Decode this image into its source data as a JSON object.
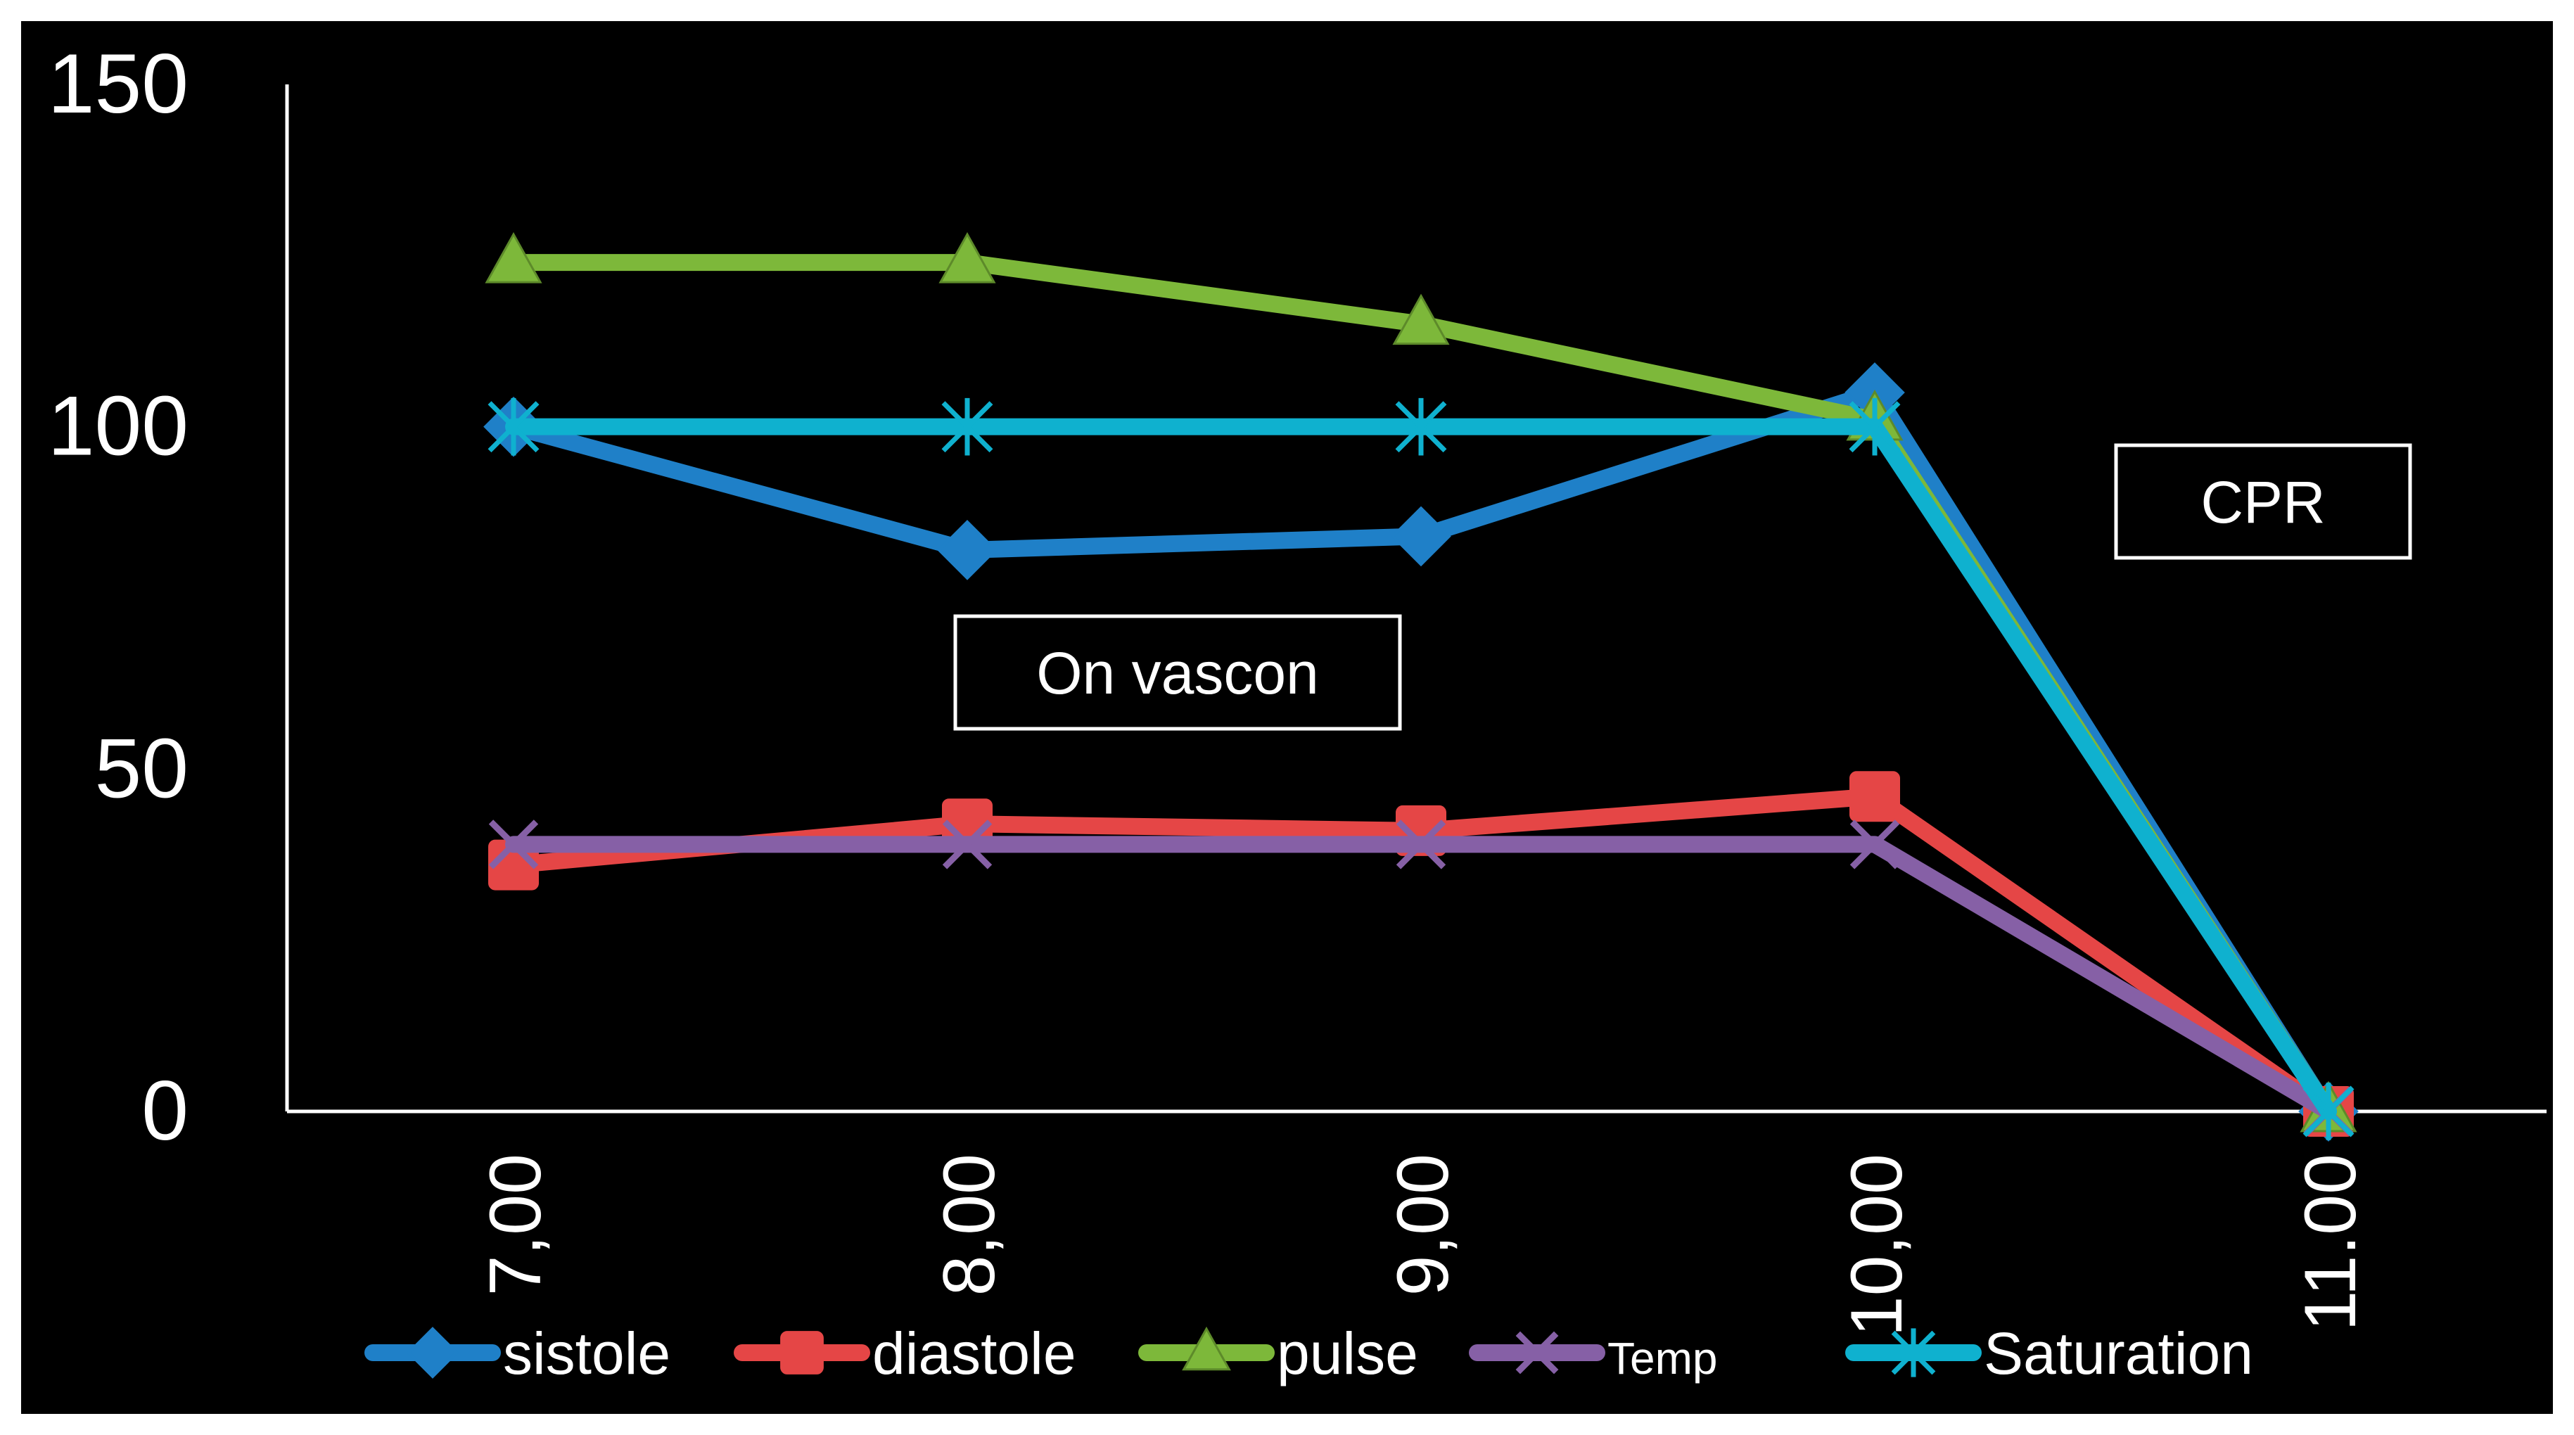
{
  "chart_data": {
    "type": "line",
    "title": "",
    "xlabel": "",
    "ylabel": "",
    "categories": [
      "7,00",
      "8,00",
      "9,00",
      "10,00",
      "11.00"
    ],
    "ylim": [
      0,
      150
    ],
    "yticks": [
      "0",
      "50",
      "100",
      "150"
    ],
    "grid": false,
    "legend_position": "bottom",
    "background": "#000000",
    "series": [
      {
        "name": "sistole",
        "values": [
          100,
          82,
          84,
          105,
          0
        ],
        "color": "#1f80c8",
        "marker": "diamond"
      },
      {
        "name": "diastole",
        "values": [
          36,
          42,
          41,
          46,
          0
        ],
        "color": "#e54646",
        "marker": "square"
      },
      {
        "name": "pulse",
        "values": [
          124,
          124,
          115,
          101,
          0
        ],
        "color": "#7db83a",
        "marker": "triangle"
      },
      {
        "name": "Temp",
        "values": [
          39,
          39,
          39,
          39,
          0
        ],
        "color": "#8660a6",
        "marker": "x"
      },
      {
        "name": "Saturation",
        "values": [
          100,
          100,
          100,
          100,
          0
        ],
        "color": "#0fb1cf",
        "marker": "star"
      }
    ],
    "annotations": [
      {
        "text": "On vascon"
      },
      {
        "text": "CPR"
      }
    ]
  }
}
